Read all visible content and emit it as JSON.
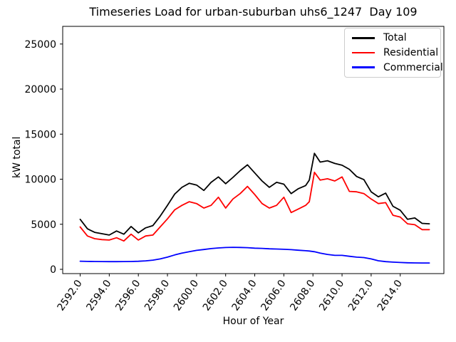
{
  "chart_data": {
    "type": "line",
    "title": "Timeseries Load for urban-suburban uhs6_1247  Day 109",
    "xlabel": "Hour of Year",
    "ylabel": "kW total",
    "xlim": [
      2590.8,
      2617.0
    ],
    "ylim": [
      -475,
      26960
    ],
    "grid": false,
    "legend_position": "upper right",
    "x_ticks": [
      2592,
      2594,
      2596,
      2598,
      2600,
      2602,
      2604,
      2606,
      2608,
      2610,
      2612,
      2614
    ],
    "x_tick_labels": [
      "2592.0",
      "2594.0",
      "2596.0",
      "2598.0",
      "2600.0",
      "2602.0",
      "2604.0",
      "2606.0",
      "2608.0",
      "2610.0",
      "2612.0",
      "2614.0"
    ],
    "y_ticks": [
      0,
      5000,
      10000,
      15000,
      20000,
      25000
    ],
    "y_tick_labels": [
      "0",
      "5000",
      "10000",
      "15000",
      "20000",
      "25000"
    ],
    "x": [
      2592,
      2592.5,
      2593,
      2593.5,
      2594,
      2594.5,
      2595,
      2595.5,
      2596,
      2596.5,
      2597,
      2597.5,
      2598,
      2598.5,
      2599,
      2599.5,
      2600,
      2600.5,
      2601,
      2601.5,
      2602,
      2602.5,
      2603,
      2603.5,
      2604,
      2604.5,
      2605,
      2605.5,
      2606,
      2606.5,
      2607,
      2607.5,
      2607.75,
      2608.1,
      2608.5,
      2609,
      2609.5,
      2610,
      2610.5,
      2611,
      2611.5,
      2612,
      2612.5,
      2613,
      2613.5,
      2614,
      2614.5,
      2615,
      2615.5,
      2616
    ],
    "series": [
      {
        "name": "Total",
        "color": "#000000",
        "values": [
          5550,
          4500,
          4100,
          3950,
          3800,
          4250,
          3900,
          4750,
          4050,
          4600,
          4850,
          5900,
          7100,
          8350,
          9100,
          9550,
          9350,
          8750,
          9650,
          10250,
          9500,
          10200,
          10950,
          11600,
          10700,
          9800,
          9100,
          9650,
          9450,
          8400,
          8950,
          9300,
          9900,
          12870,
          11900,
          12050,
          11750,
          11550,
          11100,
          10300,
          9950,
          8600,
          8050,
          8450,
          7000,
          6550,
          5550,
          5700,
          5100,
          5050
        ]
      },
      {
        "name": "Residential",
        "color": "#ff0000",
        "values": [
          4700,
          3700,
          3400,
          3300,
          3250,
          3500,
          3150,
          3900,
          3250,
          3700,
          3800,
          4700,
          5600,
          6600,
          7100,
          7500,
          7300,
          6800,
          7100,
          8000,
          6800,
          7800,
          8400,
          9200,
          8300,
          7300,
          6800,
          7100,
          8000,
          6300,
          6700,
          7100,
          7500,
          10770,
          9900,
          10050,
          9800,
          10250,
          8650,
          8600,
          8400,
          7800,
          7300,
          7400,
          6000,
          5800,
          5050,
          4950,
          4400,
          4400
        ]
      },
      {
        "name": "Commercial",
        "color": "#0000ff",
        "values": [
          900,
          880,
          870,
          860,
          855,
          855,
          860,
          870,
          890,
          940,
          1020,
          1150,
          1350,
          1600,
          1800,
          1950,
          2100,
          2200,
          2300,
          2370,
          2420,
          2440,
          2430,
          2400,
          2350,
          2320,
          2280,
          2250,
          2220,
          2180,
          2120,
          2060,
          2030,
          1950,
          1800,
          1650,
          1550,
          1550,
          1450,
          1350,
          1300,
          1150,
          950,
          850,
          800,
          760,
          730,
          710,
          700,
          700
        ]
      }
    ]
  }
}
